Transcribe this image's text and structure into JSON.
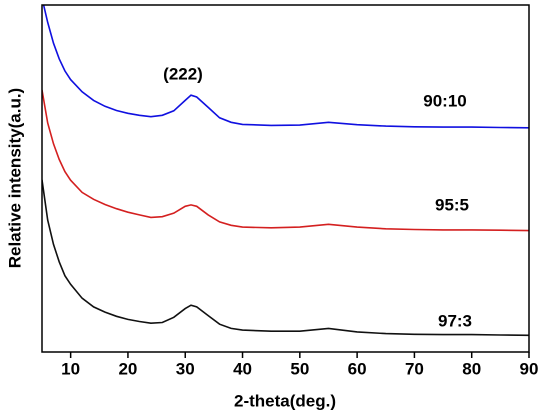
{
  "chart_data": {
    "type": "line",
    "xlabel": "2-theta(deg.)",
    "ylabel": "Relative intensity(a.u.)",
    "annotations": [
      "(222)",
      "90:10",
      "95:5",
      "97:3"
    ],
    "x": [
      5,
      6,
      7,
      8,
      9,
      10,
      12,
      14,
      16,
      18,
      20,
      22,
      24,
      26,
      28,
      30,
      31,
      32,
      34,
      36,
      38,
      40,
      45,
      50,
      55,
      60,
      65,
      70,
      75,
      80,
      85,
      90
    ],
    "series": [
      {
        "name": "90:10",
        "color": "#1010e0",
        "values": [
          102,
          95,
          89,
          84.5,
          81,
          78.5,
          75,
          72.5,
          70.8,
          69.6,
          68.8,
          68.2,
          67.8,
          68.2,
          69.5,
          72.5,
          74,
          73.5,
          70.5,
          67.5,
          66.2,
          65.6,
          65.3,
          65.4,
          66.2,
          65.5,
          65.1,
          64.9,
          64.8,
          64.8,
          64.7,
          64.6
        ]
      },
      {
        "name": "95:5",
        "color": "#d42020",
        "values": [
          75.5,
          66,
          60,
          55.5,
          52,
          49.5,
          46,
          44,
          42.5,
          41.3,
          40.3,
          39.5,
          38.8,
          39,
          40,
          42,
          42.4,
          42,
          39.5,
          37.5,
          36.5,
          36,
          35.8,
          36,
          36.8,
          36,
          35.5,
          35.3,
          35.2,
          35.2,
          35.1,
          35
        ]
      },
      {
        "name": "97:3",
        "color": "#111111",
        "values": [
          49.6,
          38,
          31,
          26,
          22,
          19.5,
          15.5,
          13,
          11.5,
          10.3,
          9.4,
          8.8,
          8.3,
          8.5,
          10,
          12.5,
          13.5,
          13,
          10.5,
          8,
          6.8,
          6.3,
          6,
          6,
          6.8,
          5.8,
          5.3,
          5.1,
          5,
          5,
          4.9,
          4.8
        ]
      }
    ],
    "xlim": [
      5,
      90
    ],
    "xticks": [
      10,
      20,
      30,
      40,
      50,
      60,
      70,
      80,
      90
    ],
    "ylim": [
      0,
      100
    ]
  }
}
